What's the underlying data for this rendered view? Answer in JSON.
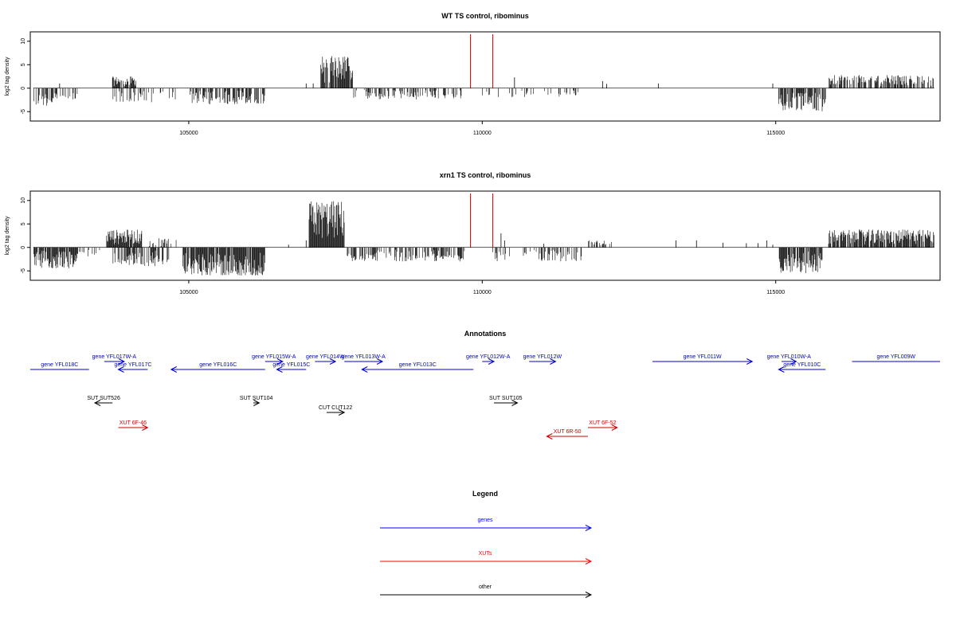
{
  "chart_data": [
    {
      "type": "bar",
      "title": "WT TS control, ribominus",
      "ylabel": "log2 tag density",
      "xlim": [
        102300,
        117800
      ],
      "ylim": [
        -7,
        12
      ],
      "yticks": [
        -5,
        0,
        5,
        10
      ],
      "xticks": [
        105000,
        110000,
        115000
      ],
      "baseline_color": "#000000",
      "bar_color": "#000000",
      "marker_color": "#cc0000",
      "segments": [
        {
          "x0": 102350,
          "x1": 102700,
          "type": "neg",
          "amp": 3.8,
          "density": 0.6
        },
        {
          "x0": 102700,
          "x1": 103100,
          "type": "neg",
          "amp": 2.5,
          "density": 0.35
        },
        {
          "x0": 103700,
          "x1": 104100,
          "type": "pos",
          "amp": 2.5,
          "density": 0.8
        },
        {
          "x0": 103700,
          "x1": 104400,
          "type": "neg",
          "amp": 3.0,
          "density": 0.4
        },
        {
          "x0": 104400,
          "x1": 104800,
          "type": "neg",
          "amp": 2.5,
          "density": 0.3
        },
        {
          "x0": 105000,
          "x1": 106300,
          "type": "neg",
          "amp": 3.5,
          "density": 0.55
        },
        {
          "x0": 107250,
          "x1": 107800,
          "type": "pos",
          "amp": 7.0,
          "density": 0.95
        },
        {
          "x0": 107800,
          "x1": 108900,
          "type": "neg",
          "amp": 2.5,
          "density": 0.4
        },
        {
          "x0": 108900,
          "x1": 109700,
          "type": "neg",
          "amp": 2.2,
          "density": 0.35
        },
        {
          "x0": 110000,
          "x1": 111700,
          "type": "neg",
          "amp": 2.0,
          "density": 0.18
        },
        {
          "x0": 115050,
          "x1": 115850,
          "type": "neg",
          "amp": 5.0,
          "density": 0.8
        },
        {
          "x0": 115900,
          "x1": 117700,
          "type": "pos",
          "amp": 2.8,
          "density": 0.65
        }
      ],
      "spikes": [
        {
          "x": 102800,
          "y": 1.0
        },
        {
          "x": 107000,
          "y": 1.0
        },
        {
          "x": 107120,
          "y": 1.0
        },
        {
          "x": 110550,
          "y": 2.3
        },
        {
          "x": 112050,
          "y": 1.5
        },
        {
          "x": 112120,
          "y": 0.9
        },
        {
          "x": 113000,
          "y": 1.0
        },
        {
          "x": 114950,
          "y": 1.0
        }
      ],
      "markers": [
        109800,
        110180
      ]
    },
    {
      "type": "bar",
      "title": "xrn1 TS control, ribominus",
      "ylabel": "log2 tag density",
      "xlim": [
        102300,
        117800
      ],
      "ylim": [
        -7,
        12
      ],
      "yticks": [
        -5,
        0,
        5,
        10
      ],
      "xticks": [
        105000,
        110000,
        115000
      ],
      "baseline_color": "#000000",
      "bar_color": "#000000",
      "marker_color": "#cc0000",
      "segments": [
        {
          "x0": 102350,
          "x1": 103100,
          "type": "neg",
          "amp": 4.5,
          "density": 0.85
        },
        {
          "x0": 103100,
          "x1": 103500,
          "type": "neg",
          "amp": 2.0,
          "density": 0.4
        },
        {
          "x0": 103600,
          "x1": 104200,
          "type": "pos",
          "amp": 3.8,
          "density": 0.9
        },
        {
          "x0": 103700,
          "x1": 104700,
          "type": "neg",
          "amp": 4.0,
          "density": 0.55
        },
        {
          "x0": 104300,
          "x1": 104800,
          "type": "pos",
          "amp": 2.0,
          "density": 0.3
        },
        {
          "x0": 104900,
          "x1": 106300,
          "type": "neg",
          "amp": 6.0,
          "density": 0.9
        },
        {
          "x0": 107050,
          "x1": 107650,
          "type": "pos",
          "amp": 10.0,
          "density": 1.0
        },
        {
          "x0": 107700,
          "x1": 109700,
          "type": "neg",
          "amp": 3.0,
          "density": 0.55
        },
        {
          "x0": 110150,
          "x1": 111700,
          "type": "neg",
          "amp": 3.0,
          "density": 0.3
        },
        {
          "x0": 111800,
          "x1": 112200,
          "type": "pos",
          "amp": 1.5,
          "density": 0.3
        },
        {
          "x0": 115050,
          "x1": 115800,
          "type": "neg",
          "amp": 5.5,
          "density": 0.85
        },
        {
          "x0": 115900,
          "x1": 117700,
          "type": "pos",
          "amp": 3.8,
          "density": 0.85
        }
      ],
      "spikes": [
        {
          "x": 106700,
          "y": 0.6
        },
        {
          "x": 107000,
          "y": 1.5
        },
        {
          "x": 110320,
          "y": 3.0
        },
        {
          "x": 110380,
          "y": 1.5
        },
        {
          "x": 111050,
          "y": 0.8
        },
        {
          "x": 113300,
          "y": 1.5
        },
        {
          "x": 113650,
          "y": 1.5
        },
        {
          "x": 114100,
          "y": 1.0
        },
        {
          "x": 114500,
          "y": 0.9
        },
        {
          "x": 114700,
          "y": 0.9
        },
        {
          "x": 114850,
          "y": 1.5
        },
        {
          "x": 114950,
          "y": 0.6
        }
      ],
      "markers": [
        109800,
        110180
      ]
    }
  ],
  "annotations_title": "Annotations",
  "legend_title": "Legend",
  "annotations": [
    {
      "label": "gene YFL018C",
      "x0": 102280,
      "x1": 103300,
      "dir": "none",
      "color": "#0000cc",
      "row": 2
    },
    {
      "label": "gene YFL017W-A",
      "x0": 103560,
      "x1": 103900,
      "dir": "right",
      "color": "#0000cc",
      "row": 1
    },
    {
      "label": "gene YFL017C",
      "x0": 103800,
      "x1": 104300,
      "dir": "left",
      "color": "#0000cc",
      "row": 2
    },
    {
      "label": "gene YFL016C",
      "x0": 104700,
      "x1": 106300,
      "dir": "left",
      "color": "#0000cc",
      "row": 2
    },
    {
      "label": "gene YFL015W-A",
      "x0": 106300,
      "x1": 106600,
      "dir": "right",
      "color": "#0000cc",
      "row": 1
    },
    {
      "label": "gene YFL015C",
      "x0": 106500,
      "x1": 107000,
      "dir": "left",
      "color": "#0000cc",
      "row": 2
    },
    {
      "label": "gene YFL014W",
      "x0": 107150,
      "x1": 107500,
      "dir": "right",
      "color": "#0000cc",
      "row": 1
    },
    {
      "label": "gene YFL013W-A",
      "x0": 107650,
      "x1": 108300,
      "dir": "right",
      "color": "#0000cc",
      "row": 1
    },
    {
      "label": "gene YFL013C",
      "x0": 107950,
      "x1": 109850,
      "dir": "left",
      "color": "#0000cc",
      "row": 2
    },
    {
      "label": "gene YFL012W-A",
      "x0": 110000,
      "x1": 110200,
      "dir": "right",
      "color": "#0000cc",
      "row": 1
    },
    {
      "label": "gene YFL012W",
      "x0": 110800,
      "x1": 111250,
      "dir": "right",
      "color": "#0000cc",
      "row": 1
    },
    {
      "label": "gene YFL011W",
      "x0": 112900,
      "x1": 114600,
      "dir": "right",
      "color": "#0000cc",
      "row": 1
    },
    {
      "label": "gene YFL010W-A",
      "x0": 115100,
      "x1": 115350,
      "dir": "right",
      "color": "#0000cc",
      "row": 1
    },
    {
      "label": "gene YFL010C",
      "x0": 115050,
      "x1": 115850,
      "dir": "left",
      "color": "#0000cc",
      "row": 2
    },
    {
      "label": "gene YFL009W",
      "x0": 116300,
      "x1": 118000,
      "dir": "none",
      "color": "#0000cc",
      "row": 1
    },
    {
      "label": "SUT SUT526",
      "x0": 103400,
      "x1": 103700,
      "dir": "left",
      "color": "#000000",
      "row": 3
    },
    {
      "label": "SUT SUT104",
      "x0": 106100,
      "x1": 106200,
      "dir": "right",
      "color": "#000000",
      "row": 3
    },
    {
      "label": "CUT CUT122",
      "x0": 107350,
      "x1": 107650,
      "dir": "right",
      "color": "#000000",
      "row": 4
    },
    {
      "label": "SUT SUT105",
      "x0": 110200,
      "x1": 110600,
      "dir": "right",
      "color": "#000000",
      "row": 3
    },
    {
      "label": "XUT 6F-46",
      "x0": 103800,
      "x1": 104300,
      "dir": "right",
      "color": "#cc0000",
      "row": 5
    },
    {
      "label": "XUT 6F-52",
      "x0": 111800,
      "x1": 112300,
      "dir": "right",
      "color": "#cc0000",
      "row": 5
    },
    {
      "label": "XUT 6R-50",
      "x0": 111100,
      "x1": 111800,
      "dir": "left",
      "color": "#cc0000",
      "row": 6
    }
  ],
  "legend": [
    {
      "label": "genes",
      "color": "#0000ff"
    },
    {
      "label": "XUTs",
      "color": "#ff0000"
    },
    {
      "label": "other",
      "color": "#000000"
    }
  ]
}
